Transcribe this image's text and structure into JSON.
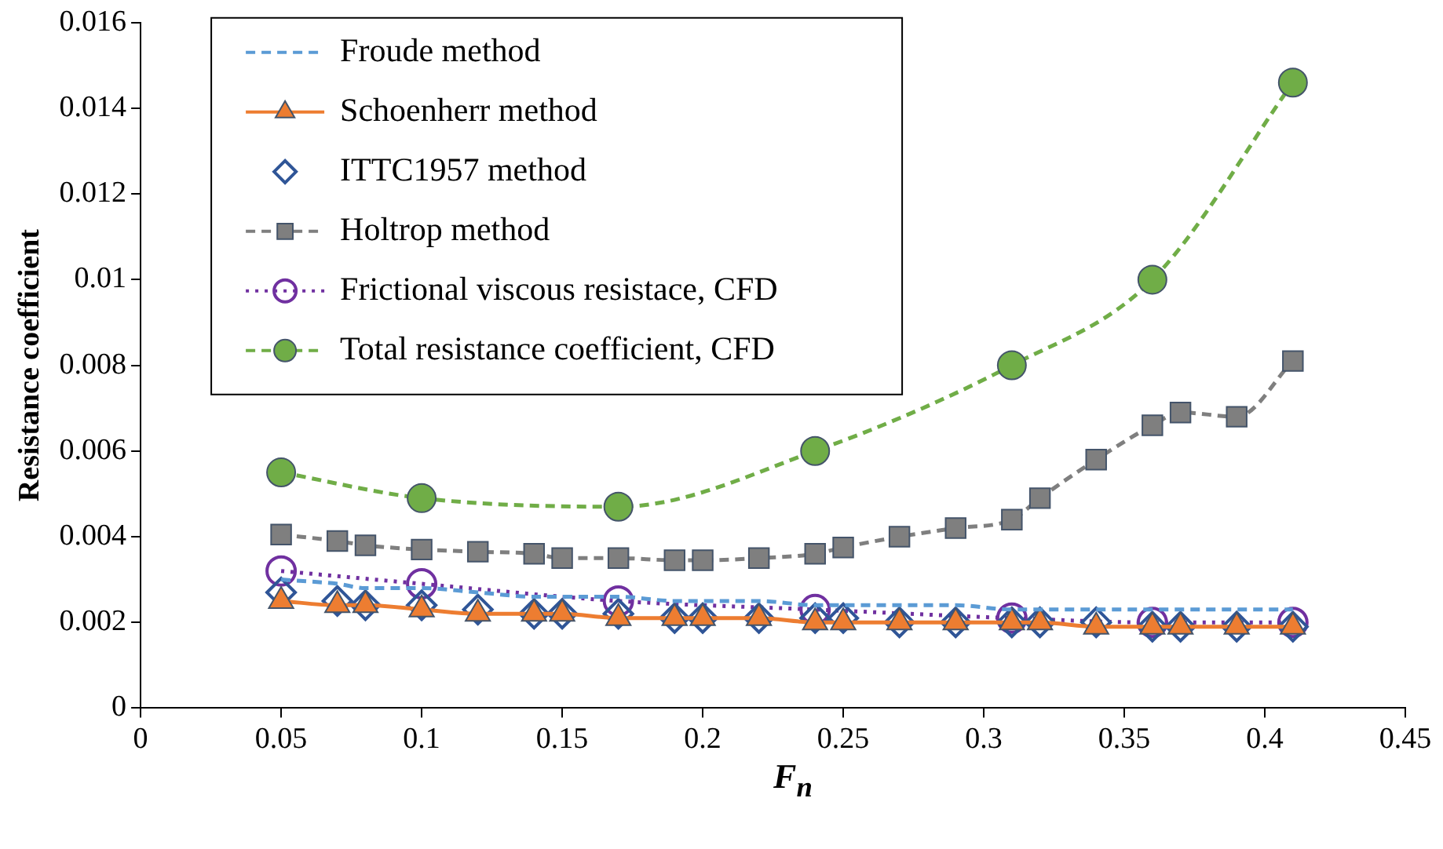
{
  "chart_data": {
    "type": "line",
    "xlabel": "F$_{n}$",
    "ylabel": "Resistance coefficient",
    "xlim": [
      0,
      0.45
    ],
    "xticks": [
      0,
      0.05,
      0.1,
      0.15,
      0.2,
      0.25,
      0.3,
      0.35,
      0.4,
      0.45
    ],
    "ylim": [
      0,
      0.016
    ],
    "yticks": [
      0,
      0.002,
      0.004,
      0.006,
      0.008,
      0.01,
      0.012,
      0.014,
      0.016
    ],
    "grid": false,
    "legend": "top left",
    "x": [
      0.05,
      0.07,
      0.08,
      0.1,
      0.12,
      0.14,
      0.15,
      0.17,
      0.19,
      0.2,
      0.22,
      0.24,
      0.25,
      0.27,
      0.29,
      0.31,
      0.32,
      0.34,
      0.36,
      0.37,
      0.39,
      0.41
    ],
    "series": [
      {
        "name": "Froude method",
        "color": "#5b9bd5",
        "marker": "none",
        "line_style": "dashed",
        "values": [
          0.003,
          0.0029,
          0.0028,
          0.0028,
          0.0027,
          0.0026,
          0.0026,
          0.0026,
          0.0025,
          0.0025,
          0.0025,
          0.0024,
          0.0024,
          0.0024,
          0.0024,
          0.0023,
          0.0023,
          0.0023,
          0.0023,
          0.0023,
          0.0023,
          0.0023
        ]
      },
      {
        "name": "Schoenherr method",
        "color": "#ed7d31",
        "marker": "triangle",
        "line_style": "solid",
        "values": [
          0.0025,
          0.0024,
          0.0024,
          0.0023,
          0.0022,
          0.0022,
          0.0022,
          0.0021,
          0.0021,
          0.0021,
          0.0021,
          0.002,
          0.002,
          0.002,
          0.002,
          0.002,
          0.002,
          0.0019,
          0.0019,
          0.0019,
          0.0019,
          0.0019
        ]
      },
      {
        "name": "ITTC1957 method",
        "type": "scatter",
        "color": "#2f5597",
        "marker": "diamond",
        "values": [
          0.0027,
          0.0025,
          0.0024,
          0.0024,
          0.0023,
          0.0022,
          0.0022,
          0.0022,
          0.0021,
          0.0021,
          0.0021,
          0.0021,
          0.0021,
          0.002,
          0.002,
          0.002,
          0.002,
          0.002,
          0.0019,
          0.0019,
          0.0019,
          0.0019
        ]
      },
      {
        "name": "Holtrop method",
        "color": "#7f7f7f",
        "marker": "square",
        "line_style": "dashed",
        "values": [
          0.00405,
          0.0039,
          0.0038,
          0.0037,
          0.00365,
          0.0036,
          0.0035,
          0.0035,
          0.00345,
          0.00345,
          0.0035,
          0.0036,
          0.00375,
          0.004,
          0.0042,
          0.0044,
          0.0049,
          0.0058,
          0.0066,
          0.0069,
          0.0068,
          0.0081
        ]
      },
      {
        "name": "Frictional viscous resistace, CFD",
        "color": "#7030a0",
        "marker": "circle",
        "line_style": "dotted",
        "x": [
          0.05,
          0.1,
          0.17,
          0.24,
          0.31,
          0.36,
          0.41
        ],
        "values": [
          0.0032,
          0.0029,
          0.0025,
          0.0023,
          0.0021,
          0.002,
          0.002
        ]
      },
      {
        "name": "Total resistance coefficient, CFD",
        "color": "#70ad47",
        "marker": "circle",
        "line_style": "dashed",
        "x": [
          0.05,
          0.1,
          0.17,
          0.24,
          0.31,
          0.36,
          0.41
        ],
        "values": [
          0.0055,
          0.0049,
          0.0047,
          0.006,
          0.008,
          0.01,
          0.0146
        ]
      }
    ]
  }
}
